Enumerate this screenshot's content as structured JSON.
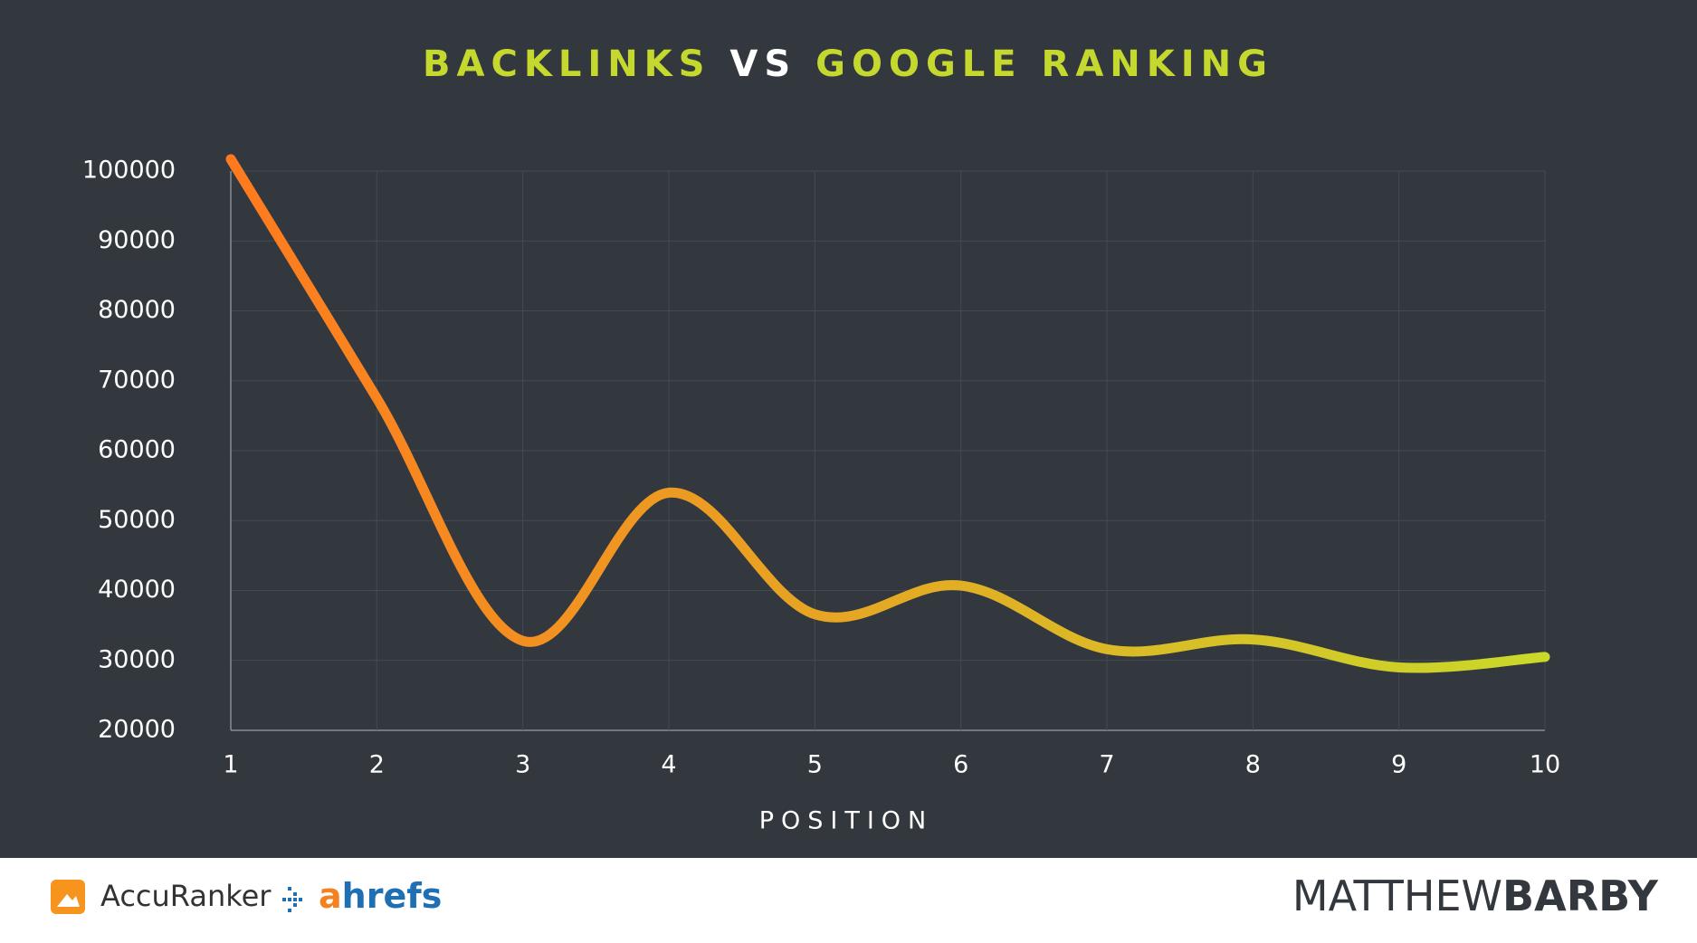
{
  "chart_data": {
    "type": "line",
    "title_parts": [
      {
        "text": "BACKLINKS",
        "color": "#c4d82e"
      },
      {
        "text": "VS",
        "color": "#ffffff"
      },
      {
        "text": "GOOGLE RANKING",
        "color": "#c4d82e"
      }
    ],
    "x_label": "POSITION",
    "x": [
      1,
      2,
      3,
      4,
      5,
      6,
      7,
      8,
      9,
      10
    ],
    "values": [
      101700,
      67500,
      32800,
      54000,
      36600,
      40700,
      31600,
      33000,
      29000,
      30500
    ],
    "colors": [
      "#ff7a1e",
      "#c9d92a"
    ],
    "xlim": [
      1,
      10
    ],
    "xticks": [
      1,
      2,
      3,
      4,
      5,
      6,
      7,
      8,
      9,
      10
    ],
    "ylim": [
      20000,
      100000
    ],
    "yticks": [
      20000,
      30000,
      40000,
      50000,
      60000,
      70000,
      80000,
      90000,
      100000
    ],
    "grid": true
  },
  "footer": {
    "accuranker": "AccuRanker",
    "ahrefs_parts": [
      {
        "text": "a",
        "color": "#f58220"
      },
      {
        "text": "hrefs",
        "color": "#1f6fb5"
      }
    ],
    "brand_light": "MATTHEW",
    "brand_bold": "BARBY"
  }
}
